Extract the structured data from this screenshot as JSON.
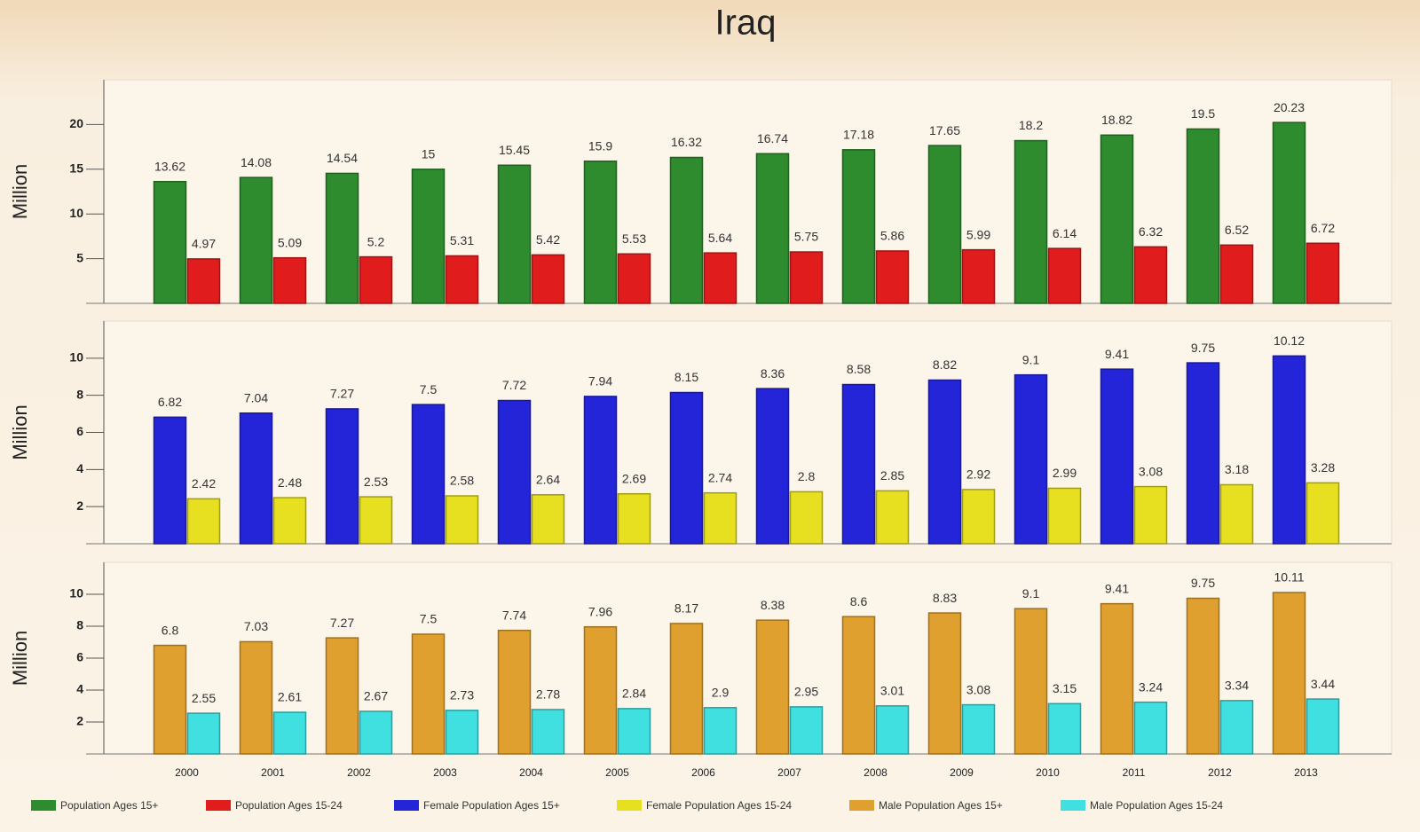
{
  "title": "Iraq",
  "chart_data": [
    {
      "type": "bar",
      "ylabel": "Million",
      "categories": [
        "2000",
        "2001",
        "2002",
        "2003",
        "2004",
        "2005",
        "2006",
        "2007",
        "2008",
        "2009",
        "2010",
        "2011",
        "2012",
        "2013"
      ],
      "ylim": [
        0,
        25
      ],
      "yticks": [
        5,
        10,
        15,
        20
      ],
      "series": [
        {
          "name": "Population Ages 15+",
          "color": "#2e8b2e",
          "values": [
            13.62,
            14.08,
            14.54,
            15,
            15.45,
            15.9,
            16.32,
            16.74,
            17.18,
            17.65,
            18.2,
            18.82,
            19.5,
            20.23
          ]
        },
        {
          "name": "Population Ages 15-24",
          "color": "#e01c1c",
          "values": [
            4.97,
            5.09,
            5.2,
            5.31,
            5.42,
            5.53,
            5.64,
            5.75,
            5.86,
            5.99,
            6.14,
            6.32,
            6.52,
            6.72
          ]
        }
      ]
    },
    {
      "type": "bar",
      "ylabel": "Million",
      "categories": [
        "2000",
        "2001",
        "2002",
        "2003",
        "2004",
        "2005",
        "2006",
        "2007",
        "2008",
        "2009",
        "2010",
        "2011",
        "2012",
        "2013"
      ],
      "ylim": [
        0,
        12
      ],
      "yticks": [
        2,
        4,
        6,
        8,
        10
      ],
      "series": [
        {
          "name": "Female Population Ages 15+",
          "color": "#2424d8",
          "values": [
            6.82,
            7.04,
            7.27,
            7.5,
            7.72,
            7.94,
            8.15,
            8.36,
            8.58,
            8.82,
            9.1,
            9.41,
            9.75,
            10.12
          ]
        },
        {
          "name": "Female Population Ages 15-24",
          "color": "#e6e020",
          "values": [
            2.42,
            2.48,
            2.53,
            2.58,
            2.64,
            2.69,
            2.74,
            2.8,
            2.85,
            2.92,
            2.99,
            3.08,
            3.18,
            3.28
          ]
        }
      ]
    },
    {
      "type": "bar",
      "ylabel": "Million",
      "categories": [
        "2000",
        "2001",
        "2002",
        "2003",
        "2004",
        "2005",
        "2006",
        "2007",
        "2008",
        "2009",
        "2010",
        "2011",
        "2012",
        "2013"
      ],
      "ylim": [
        0,
        12
      ],
      "yticks": [
        2,
        4,
        6,
        8,
        10
      ],
      "series": [
        {
          "name": "Male Population Ages 15+",
          "color": "#e0a030",
          "values": [
            6.8,
            7.03,
            7.27,
            7.5,
            7.74,
            7.96,
            8.17,
            8.38,
            8.6,
            8.83,
            9.1,
            9.41,
            9.75,
            10.11
          ]
        },
        {
          "name": "Male Population Ages 15-24",
          "color": "#40e0e0",
          "values": [
            2.55,
            2.61,
            2.67,
            2.73,
            2.78,
            2.84,
            2.9,
            2.95,
            3.01,
            3.08,
            3.15,
            3.24,
            3.34,
            3.44
          ]
        }
      ]
    }
  ]
}
